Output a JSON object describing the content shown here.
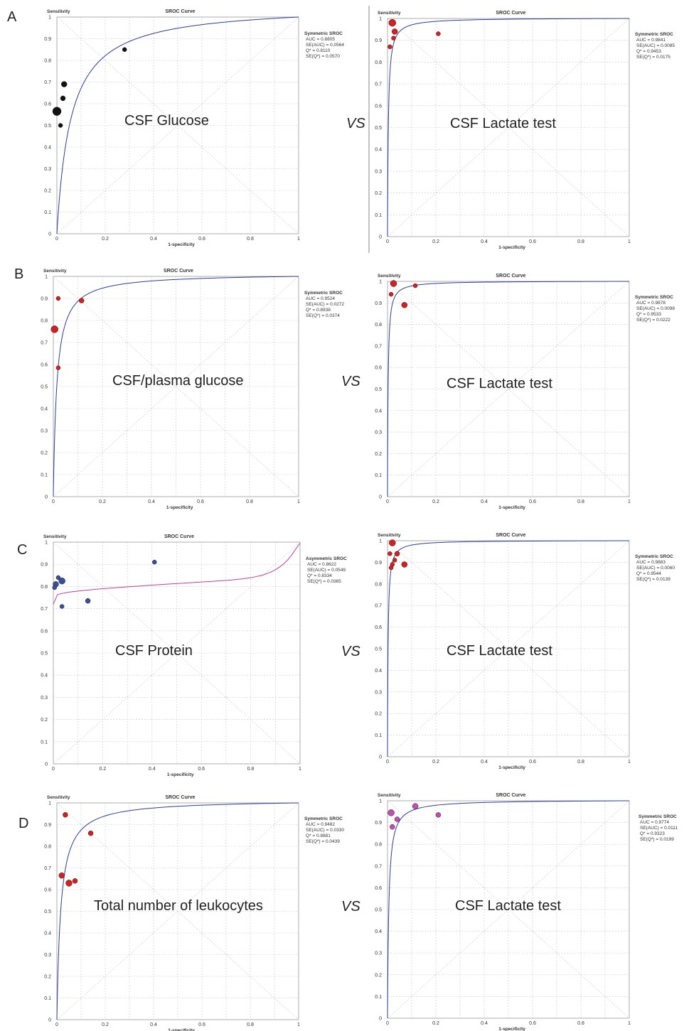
{
  "colors": {
    "curve_symmetric": "#2c3e9a",
    "curve_asymmetric": "#c0409a",
    "point_black": "#111111",
    "point_red": "#d42020",
    "point_blue": "#3a4f9a",
    "point_magenta": "#c050b0",
    "grid": "#c8c8c8",
    "frame": "#999999"
  },
  "vs_label": "VS",
  "chart_data": [
    {
      "panel": "A",
      "type": "scatter",
      "title": "SROC Curve",
      "xlabel": "1-specificity",
      "ylabel": "Sensitivity",
      "xlim": [
        0,
        1
      ],
      "ylim": [
        0,
        1
      ],
      "xticks": [
        "0",
        "0.2",
        "0.4",
        "0.6",
        "0.8",
        "1"
      ],
      "yticks": [
        "0",
        "0.1",
        "0.2",
        "0.3",
        "0.4",
        "0.5",
        "0.6",
        "0.7",
        "0.8",
        "0.9",
        "1"
      ],
      "grid": true,
      "label": "CSF Glucose",
      "curve": {
        "q": 0.811,
        "shape": "symmetric"
      },
      "stats_header": "Symmetric SROC",
      "stats": [
        "AUC = 0.8805",
        "SE(AUC) = 0.0564",
        "Q* = 0.8110",
        "SE(Q*) = 0.0570"
      ],
      "point_color": "black",
      "points": [
        {
          "x": 0.28,
          "y": 0.85,
          "r": 3
        },
        {
          "x": 0.03,
          "y": 0.69,
          "r": 4
        },
        {
          "x": 0.025,
          "y": 0.625,
          "r": 3.5
        },
        {
          "x": 0.0,
          "y": 0.565,
          "r": 6
        },
        {
          "x": 0.015,
          "y": 0.5,
          "r": 3
        }
      ]
    },
    {
      "panel": "A2",
      "type": "scatter",
      "title": "SROC Curve",
      "xlabel": "1-specificity",
      "ylabel": "Sensitivity",
      "xlim": [
        0,
        1
      ],
      "ylim": [
        0,
        1
      ],
      "xticks": [
        "0",
        "0.2",
        "0.4",
        "0.6",
        "0.8",
        "1"
      ],
      "yticks": [
        "0",
        "0.1",
        "0.2",
        "0.3",
        "0.4",
        "0.5",
        "0.6",
        "0.7",
        "0.8",
        "0.9",
        "1"
      ],
      "grid": true,
      "label": "CSF Lactate test",
      "curve": {
        "q": 0.9453,
        "shape": "symmetric"
      },
      "stats_header": "Symmetric SROC",
      "stats": [
        "AUC = 0.9841",
        "SE(AUC) = 0.0085",
        "Q* = 0.9453",
        "SE(Q*) = 0.0175"
      ],
      "point_color": "red",
      "points": [
        {
          "x": 0.02,
          "y": 0.98,
          "r": 5
        },
        {
          "x": 0.03,
          "y": 0.94,
          "r": 4
        },
        {
          "x": 0.025,
          "y": 0.91,
          "r": 3
        },
        {
          "x": 0.01,
          "y": 0.87,
          "r": 3
        },
        {
          "x": 0.21,
          "y": 0.93,
          "r": 3
        }
      ]
    },
    {
      "panel": "B",
      "type": "scatter",
      "title": "SROC Curve",
      "xlabel": "1-specificity",
      "ylabel": "Sensitivity",
      "xlim": [
        0,
        1
      ],
      "ylim": [
        0,
        1
      ],
      "xticks": [
        "0",
        "0.2",
        "0.4",
        "0.6",
        "0.8",
        "1"
      ],
      "yticks": [
        "0",
        "0.1",
        "0.2",
        "0.3",
        "0.4",
        "0.5",
        "0.6",
        "0.7",
        "0.8",
        "0.9",
        "1"
      ],
      "grid": true,
      "label": "CSF/plasma glucose",
      "curve": {
        "q": 0.8938,
        "shape": "symmetric"
      },
      "stats_header": "Symmetric SROC",
      "stats": [
        "AUC = 0.9524",
        "SE(AUC) = 0.0272",
        "Q* = 0.8938",
        "SE(Q*) = 0.0374"
      ],
      "point_color": "red",
      "points": [
        {
          "x": 0.02,
          "y": 0.9,
          "r": 3
        },
        {
          "x": 0.115,
          "y": 0.89,
          "r": 3.5
        },
        {
          "x": 0.005,
          "y": 0.76,
          "r": 5
        },
        {
          "x": 0.02,
          "y": 0.585,
          "r": 3
        }
      ]
    },
    {
      "panel": "B2",
      "type": "scatter",
      "title": "SROC Curve",
      "xlabel": "1-specificity",
      "ylabel": "Sensitivity",
      "xlim": [
        0,
        1
      ],
      "ylim": [
        0,
        1
      ],
      "xticks": [
        "0",
        "0.2",
        "0.4",
        "0.6",
        "0.8",
        "1"
      ],
      "yticks": [
        "0",
        "0.1",
        "0.2",
        "0.3",
        "0.4",
        "0.5",
        "0.6",
        "0.7",
        "0.8",
        "0.9",
        "1"
      ],
      "grid": true,
      "label": "CSF Lactate test",
      "curve": {
        "q": 0.9533,
        "shape": "symmetric"
      },
      "stats_header": "Symmetric SROC",
      "stats": [
        "AUC = 0.9878",
        "SE(AUC) = 0.0098",
        "Q* = 0.9533",
        "SE(Q*) = 0.0222"
      ],
      "point_color": "red",
      "points": [
        {
          "x": 0.025,
          "y": 0.99,
          "r": 4.5
        },
        {
          "x": 0.115,
          "y": 0.98,
          "r": 3
        },
        {
          "x": 0.015,
          "y": 0.94,
          "r": 3
        },
        {
          "x": 0.07,
          "y": 0.89,
          "r": 4
        }
      ]
    },
    {
      "panel": "C",
      "type": "scatter",
      "title": "SROC Curve",
      "xlabel": "1-specificity",
      "ylabel": "Sensitivity",
      "xlim": [
        0,
        1
      ],
      "ylim": [
        0,
        1
      ],
      "xticks": [
        "0",
        "0.2",
        "0.4",
        "0.6",
        "0.8",
        "1"
      ],
      "yticks": [
        "0",
        "0.1",
        "0.2",
        "0.3",
        "0.4",
        "0.5",
        "0.6",
        "0.7",
        "0.8",
        "0.9",
        "1"
      ],
      "grid": true,
      "label": "CSF Protein",
      "curve": {
        "q": 0.8334,
        "shape": "asymmetric"
      },
      "stats_header": "Asymmetric SROC",
      "stats": [
        "AUC = 0.8622",
        "SE(AUC) = 0.0549",
        "Q* = 0.8334",
        "SE(Q*) = 0.0365"
      ],
      "point_color": "blue",
      "points": [
        {
          "x": 0.41,
          "y": 0.91,
          "r": 3
        },
        {
          "x": 0.02,
          "y": 0.84,
          "r": 3
        },
        {
          "x": 0.035,
          "y": 0.825,
          "r": 4.5
        },
        {
          "x": 0.01,
          "y": 0.81,
          "r": 4
        },
        {
          "x": 0.005,
          "y": 0.795,
          "r": 3
        },
        {
          "x": 0.035,
          "y": 0.71,
          "r": 3
        },
        {
          "x": 0.14,
          "y": 0.735,
          "r": 3.5
        }
      ]
    },
    {
      "panel": "C2",
      "type": "scatter",
      "title": "SROC Curve",
      "xlabel": "1-specificity",
      "ylabel": "Sensitivity",
      "xlim": [
        0,
        1
      ],
      "ylim": [
        0,
        1
      ],
      "xticks": [
        "0",
        "0.2",
        "0.4",
        "0.6",
        "0.8",
        "1"
      ],
      "yticks": [
        "0",
        "0.1",
        "0.2",
        "0.3",
        "0.4",
        "0.5",
        "0.6",
        "0.7",
        "0.8",
        "0.9",
        "1"
      ],
      "grid": true,
      "label": "CSF Lactate test",
      "curve": {
        "q": 0.9544,
        "shape": "symmetric"
      },
      "stats_header": "Symmetric SROC",
      "stats": [
        "AUC = 0.9883",
        "SE(AUC) = 0.0060",
        "Q* = 0.9544",
        "SE(Q*) = 0.0139"
      ],
      "point_color": "red",
      "points": [
        {
          "x": 0.02,
          "y": 0.99,
          "r": 4.5
        },
        {
          "x": 0.01,
          "y": 0.94,
          "r": 3
        },
        {
          "x": 0.04,
          "y": 0.94,
          "r": 3.5
        },
        {
          "x": 0.03,
          "y": 0.91,
          "r": 3
        },
        {
          "x": 0.02,
          "y": 0.89,
          "r": 3
        },
        {
          "x": 0.015,
          "y": 0.875,
          "r": 3
        },
        {
          "x": 0.07,
          "y": 0.89,
          "r": 4
        }
      ]
    },
    {
      "panel": "D",
      "type": "scatter",
      "title": "SROC Curve",
      "xlabel": "1-specificity",
      "ylabel": "Sensitivity",
      "xlim": [
        0,
        1
      ],
      "ylim": [
        0,
        1
      ],
      "xticks": [
        "0",
        "0.2",
        "0.4",
        "0.6",
        "0.8",
        "1"
      ],
      "yticks": [
        "0",
        "0.1",
        "0.2",
        "0.3",
        "0.4",
        "0.5",
        "0.6",
        "0.7",
        "0.8",
        "0.9",
        "1"
      ],
      "grid": true,
      "label": "Total number of leukocytes",
      "curve": {
        "q": 0.8881,
        "shape": "symmetric"
      },
      "stats_header": "Symmetric SROC",
      "stats": [
        "AUC = 0.9482",
        "SE(AUC) = 0.0330",
        "Q* = 0.8881",
        "SE(Q*) = 0.0439"
      ],
      "point_color": "red",
      "points": [
        {
          "x": 0.035,
          "y": 0.945,
          "r": 3.5
        },
        {
          "x": 0.14,
          "y": 0.86,
          "r": 3.5
        },
        {
          "x": 0.02,
          "y": 0.665,
          "r": 4
        },
        {
          "x": 0.05,
          "y": 0.63,
          "r": 4.5
        },
        {
          "x": 0.075,
          "y": 0.64,
          "r": 3.5
        }
      ]
    },
    {
      "panel": "D2",
      "type": "scatter",
      "title": "SROC Curve",
      "xlabel": "1-specificity",
      "ylabel": "Sensitivity",
      "xlim": [
        0,
        1
      ],
      "ylim": [
        0,
        1
      ],
      "xticks": [
        "0",
        "0.2",
        "0.4",
        "0.6",
        "0.8",
        "1"
      ],
      "yticks": [
        "0",
        "0.1",
        "0.2",
        "0.3",
        "0.4",
        "0.5",
        "0.6",
        "0.7",
        "0.8",
        "0.9",
        "1"
      ],
      "grid": true,
      "label": "CSF Lactate test",
      "curve": {
        "q": 0.9323,
        "shape": "symmetric"
      },
      "stats_header": "Symmetric SROC",
      "stats": [
        "AUC = 0.9774",
        "SE(AUC) = 0.0111",
        "Q* = 0.9323",
        "SE(Q*) = 0.0199"
      ],
      "point_color": "magenta",
      "points": [
        {
          "x": 0.115,
          "y": 0.975,
          "r": 4
        },
        {
          "x": 0.015,
          "y": 0.945,
          "r": 4.5
        },
        {
          "x": 0.04,
          "y": 0.915,
          "r": 3.5
        },
        {
          "x": 0.02,
          "y": 0.88,
          "r": 3.5
        },
        {
          "x": 0.21,
          "y": 0.935,
          "r": 3.5
        }
      ]
    }
  ],
  "panel_letters": [
    "A",
    "B",
    "C",
    "D"
  ]
}
